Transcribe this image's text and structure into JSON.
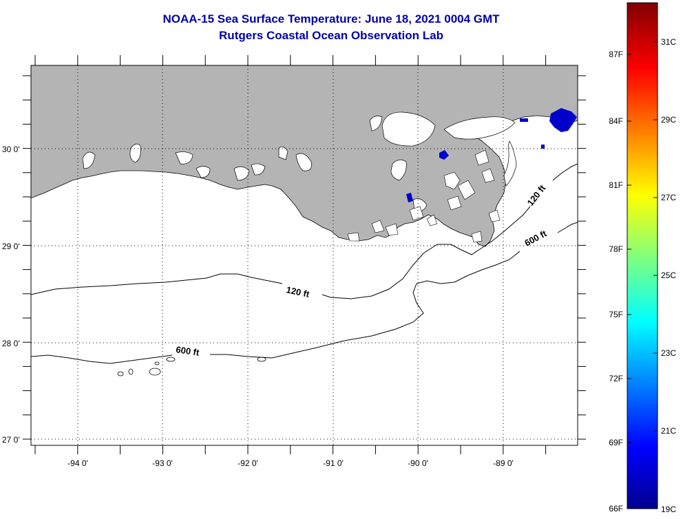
{
  "title": {
    "line1": "NOAA-15 Sea Surface Temperature:  June 18, 2021 0004 GMT",
    "line2": "Rutgers Coastal Ocean Observation Lab"
  },
  "map": {
    "longitude_ticks": [
      "-94 0'",
      "-93 0'",
      "-92 0'",
      "-91 0'",
      "-90 0'",
      "-89 0'"
    ],
    "latitude_ticks": [
      "30 0'",
      "29 0'",
      "28 0'",
      "27 0'"
    ],
    "contours": [
      {
        "label": "120 ft",
        "depth": "120 ft"
      },
      {
        "label": "600 ft",
        "depth": "600 ft"
      }
    ],
    "contour_labels": [
      "120 ft",
      "120 ft",
      "600 ft",
      "600 ft"
    ],
    "land_color": "#b4b4b4",
    "water_color": "#ffffff",
    "cold_pixel_color": "#0000cc"
  },
  "colorbar": {
    "min_c": 19,
    "max_c": 33,
    "fahrenheit_labels": [
      "87F",
      "84F",
      "81F",
      "78F",
      "75F",
      "72F",
      "69F",
      "66F"
    ],
    "celsius_labels": [
      "31C",
      "29C",
      "27C",
      "25C",
      "23C",
      "21C",
      "19C"
    ]
  }
}
